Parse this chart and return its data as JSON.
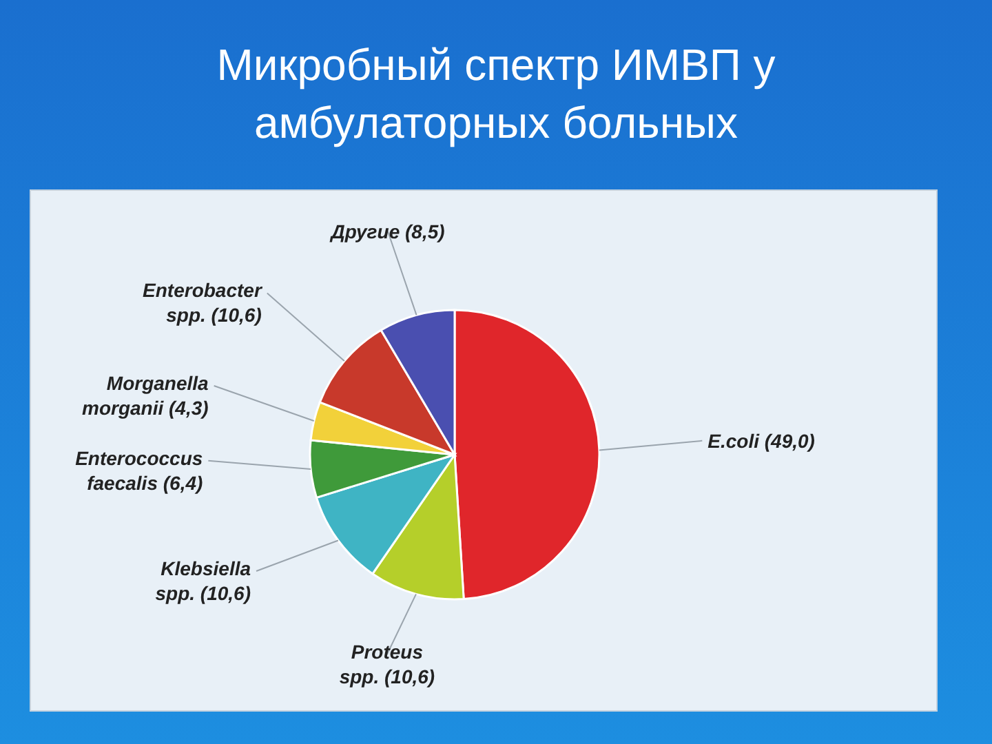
{
  "chart_data": {
    "type": "pie",
    "title": "Микробный спектр ИМВП у амбулаторных больных",
    "categories": [
      "E.coli",
      "Proteus spp.",
      "Klebsiella spp.",
      "Enterococcus faecalis",
      "Morganella morganii",
      "Enterobacter spp.",
      "Другие"
    ],
    "values": [
      49.0,
      10.6,
      10.6,
      6.4,
      4.3,
      10.6,
      8.5
    ],
    "value_labels": [
      "(49,0)",
      "(10,6)",
      "(10,6)",
      "(6,4)",
      "(4,3)",
      "(10,6)",
      "(8,5)"
    ],
    "colors": [
      "#e0262b",
      "#b5cf2a",
      "#3fb4c4",
      "#3f9a3a",
      "#f2d13a",
      "#c8392b",
      "#4a4fb0"
    ]
  }
}
